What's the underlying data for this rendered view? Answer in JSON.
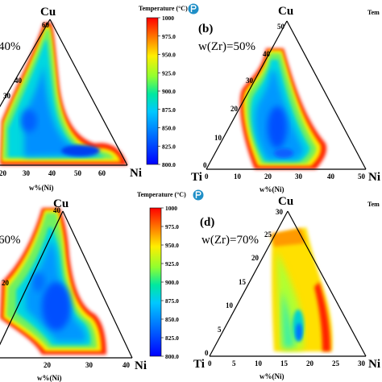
{
  "chart_data": {
    "type": "heatmap",
    "colorbar": {
      "title": "Temperature (°C)",
      "range": [
        800.0,
        1000
      ],
      "ticks": [
        "1000",
        "975.0",
        "950.0",
        "925.0",
        "900.0",
        "875.0",
        "850.0",
        "825.0",
        "800.0"
      ],
      "palette": [
        "#ff0000",
        "#ff9900",
        "#ffee00",
        "#80ff40",
        "#00e0c0",
        "#00c0ff",
        "#0060ff",
        "#0000ff"
      ]
    },
    "panels": [
      {
        "id": "a",
        "top_label": "Cu",
        "right_label": "Ni",
        "zr_text": "40%",
        "xlabel": "w%(Ni)",
        "cu_ticks": [
          "60",
          "50",
          "40",
          "30"
        ],
        "ni_ticks": [
          "20",
          "30",
          "40",
          "50",
          "60"
        ]
      },
      {
        "id": "b",
        "panel_label": "(b)",
        "top_label": "Cu",
        "left_label": "Ti",
        "right_label": "Ni",
        "zr_text": "w(Zr)=50%",
        "xlabel": "w%(Ni)",
        "cu_ticks": [
          "50",
          "40",
          "30",
          "20",
          "10",
          "0"
        ],
        "ni_ticks": [
          "0",
          "10",
          "20",
          "30",
          "40",
          "50"
        ],
        "colorbar_label_fragment": "Tem"
      },
      {
        "id": "c",
        "top_label": "Cu",
        "right_label": "Ni",
        "zr_text": "60%",
        "xlabel": "w%(Ni)",
        "cu_ticks": [
          "40",
          "20"
        ],
        "ni_ticks": [
          "20",
          "30",
          "40"
        ]
      },
      {
        "id": "d",
        "panel_label": "(d)",
        "top_label": "Cu",
        "left_label": "Ti",
        "right_label": "Ni",
        "zr_text": "w(Zr)=70%",
        "xlabel": "w%(Ni)",
        "cu_ticks": [
          "30",
          "25",
          "20",
          "15",
          "10",
          "5",
          "0"
        ],
        "ni_ticks": [
          "0",
          "5",
          "10",
          "15",
          "20",
          "25",
          "30"
        ],
        "colorbar_label_fragment": "Tem"
      }
    ]
  }
}
